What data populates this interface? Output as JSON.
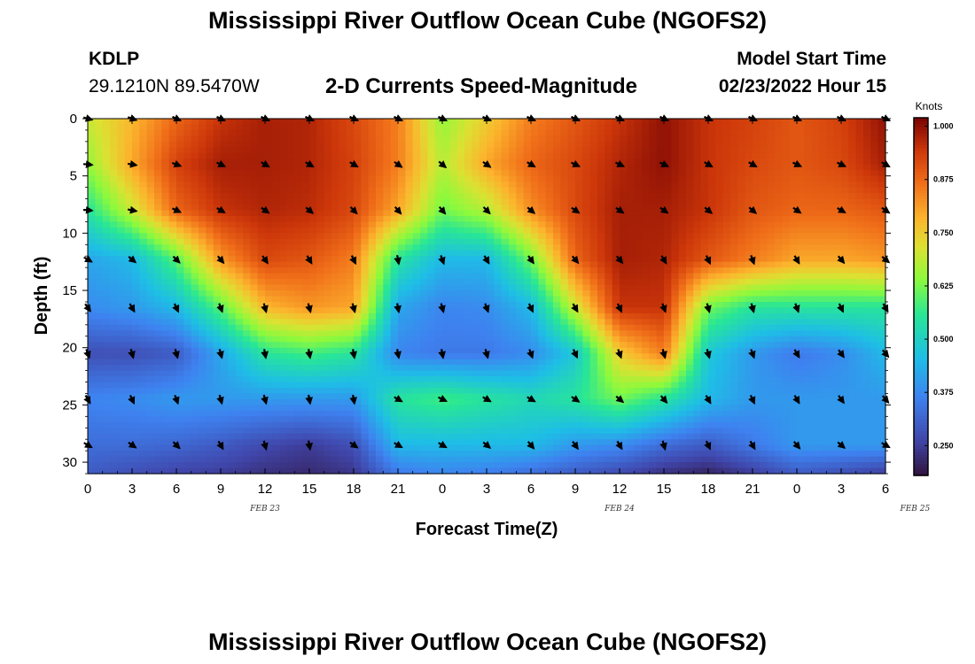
{
  "header": {
    "title": "Mississippi River Outflow Ocean Cube (NGOFS2)",
    "station_id": "KDLP",
    "station_coords": "29.1210N  89.5470W",
    "subtitle": "2-D Currents Speed-Magnitude",
    "model_start_label": "Model Start Time",
    "model_start_value": "02/23/2022 Hour 15"
  },
  "footer": {
    "title": "Mississippi River Outflow Ocean Cube (NGOFS2)"
  },
  "chart_data": {
    "type": "heatmap",
    "xlabel": "Forecast Time(Z)",
    "ylabel": "Depth (ft)",
    "x_tick_labels": [
      "0",
      "3",
      "6",
      "9",
      "12",
      "15",
      "18",
      "21",
      "0",
      "3",
      "6",
      "9",
      "12",
      "15",
      "18",
      "21",
      "0",
      "3",
      "6"
    ],
    "date_labels": [
      {
        "text": "FEB 23",
        "hour": 12
      },
      {
        "text": "FEB 24",
        "hour": 36
      },
      {
        "text": "FEB 25",
        "hour": 56
      }
    ],
    "y_ticks": [
      0,
      5,
      10,
      15,
      20,
      25,
      30
    ],
    "xlim": [
      0,
      54
    ],
    "ylim": [
      0,
      31
    ],
    "colorbar": {
      "title": "Knots",
      "min": 0.18,
      "max": 1.02,
      "ticks": [
        "1.000",
        "0.875",
        "0.750",
        "0.625",
        "0.500",
        "0.375",
        "0.250"
      ],
      "tick_values": [
        1.0,
        0.875,
        0.75,
        0.625,
        0.5,
        0.375,
        0.25
      ]
    },
    "hours": [
      0,
      3,
      6,
      9,
      12,
      15,
      18,
      21,
      24,
      27,
      30,
      33,
      36,
      39,
      42,
      45,
      48,
      51,
      54
    ],
    "depths": [
      0,
      4,
      8,
      12.3,
      16.5,
      20.5,
      24.5,
      28.5,
      31
    ],
    "speed": [
      [
        0.7,
        0.78,
        0.88,
        0.95,
        0.98,
        0.97,
        0.92,
        0.85,
        0.65,
        0.75,
        0.85,
        0.9,
        0.95,
        1.0,
        0.95,
        0.93,
        0.9,
        0.93,
        1.0
      ],
      [
        0.65,
        0.8,
        0.93,
        0.98,
        0.98,
        0.97,
        0.93,
        0.85,
        0.68,
        0.8,
        0.88,
        0.92,
        0.97,
        1.0,
        0.95,
        0.92,
        0.9,
        0.92,
        0.98
      ],
      [
        0.55,
        0.7,
        0.88,
        0.95,
        0.97,
        0.96,
        0.92,
        0.8,
        0.62,
        0.68,
        0.83,
        0.92,
        0.98,
        0.98,
        0.95,
        0.9,
        0.88,
        0.88,
        0.9
      ],
      [
        0.42,
        0.45,
        0.6,
        0.82,
        0.92,
        0.9,
        0.85,
        0.55,
        0.45,
        0.45,
        0.62,
        0.88,
        0.98,
        0.97,
        0.9,
        0.85,
        0.8,
        0.8,
        0.82
      ],
      [
        0.38,
        0.4,
        0.45,
        0.6,
        0.78,
        0.82,
        0.8,
        0.42,
        0.37,
        0.38,
        0.45,
        0.7,
        0.95,
        0.95,
        0.62,
        0.55,
        0.55,
        0.55,
        0.55
      ],
      [
        0.28,
        0.28,
        0.3,
        0.42,
        0.55,
        0.58,
        0.55,
        0.37,
        0.35,
        0.35,
        0.38,
        0.48,
        0.75,
        0.85,
        0.48,
        0.4,
        0.35,
        0.38,
        0.45
      ],
      [
        0.37,
        0.38,
        0.4,
        0.4,
        0.4,
        0.4,
        0.4,
        0.55,
        0.58,
        0.55,
        0.52,
        0.55,
        0.62,
        0.55,
        0.45,
        0.4,
        0.4,
        0.4,
        0.4
      ],
      [
        0.33,
        0.33,
        0.32,
        0.3,
        0.27,
        0.25,
        0.28,
        0.45,
        0.45,
        0.45,
        0.45,
        0.4,
        0.38,
        0.33,
        0.3,
        0.35,
        0.4,
        0.4,
        0.4
      ],
      [
        0.3,
        0.28,
        0.26,
        0.25,
        0.23,
        0.22,
        0.24,
        0.35,
        0.37,
        0.36,
        0.33,
        0.3,
        0.27,
        0.23,
        0.21,
        0.25,
        0.3,
        0.28,
        0.25
      ]
    ],
    "vector_depths": [
      0,
      4,
      8,
      12.3,
      16.5,
      20.5,
      24.5,
      28.5
    ],
    "vector_dir_deg": [
      [
        105,
        110,
        115,
        115,
        115,
        115,
        115,
        115,
        115,
        115,
        115,
        115,
        115,
        115,
        115,
        115,
        115,
        115,
        115
      ],
      [
        95,
        100,
        110,
        115,
        120,
        120,
        120,
        125,
        130,
        125,
        120,
        115,
        115,
        115,
        120,
        120,
        115,
        115,
        120
      ],
      [
        95,
        100,
        115,
        120,
        125,
        130,
        135,
        140,
        140,
        135,
        130,
        125,
        125,
        125,
        130,
        130,
        125,
        120,
        125
      ],
      [
        120,
        130,
        135,
        140,
        145,
        150,
        155,
        170,
        160,
        150,
        145,
        140,
        140,
        150,
        155,
        160,
        150,
        140,
        130
      ],
      [
        145,
        150,
        155,
        160,
        165,
        165,
        165,
        170,
        165,
        160,
        155,
        150,
        155,
        160,
        165,
        165,
        160,
        155,
        150
      ],
      [
        160,
        165,
        165,
        165,
        170,
        170,
        170,
        170,
        170,
        165,
        160,
        155,
        160,
        165,
        165,
        160,
        150,
        145,
        140
      ],
      [
        150,
        155,
        160,
        165,
        165,
        170,
        170,
        120,
        115,
        120,
        120,
        125,
        130,
        140,
        150,
        155,
        150,
        145,
        140
      ],
      [
        120,
        125,
        135,
        150,
        165,
        170,
        125,
        120,
        120,
        130,
        140,
        145,
        150,
        165,
        155,
        150,
        140,
        130,
        120
      ]
    ]
  }
}
